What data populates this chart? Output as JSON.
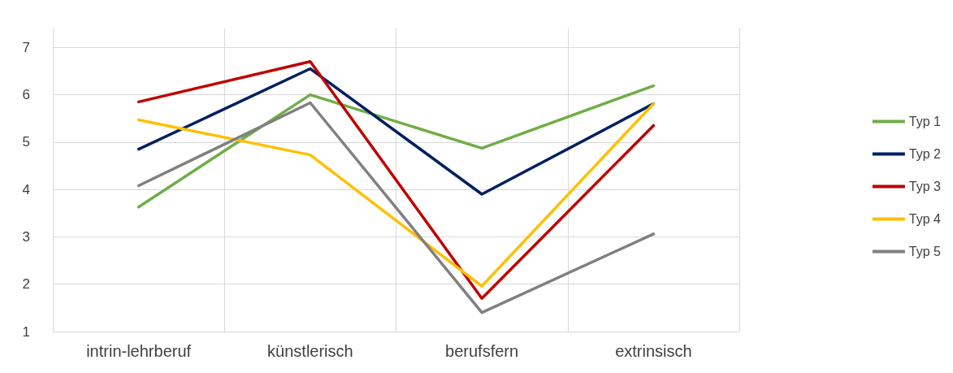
{
  "chart_data": {
    "type": "line",
    "categories": [
      "intrin-lehrberuf",
      "künstlerisch",
      "berufsfern",
      "extrinsisch"
    ],
    "series": [
      {
        "name": "Typ 1",
        "color": "#70ad47",
        "values": [
          3.63,
          6.0,
          4.87,
          6.19
        ]
      },
      {
        "name": "Typ 2",
        "color": "#002060",
        "values": [
          4.85,
          6.55,
          3.9,
          5.81
        ]
      },
      {
        "name": "Typ 3",
        "color": "#c00000",
        "values": [
          5.85,
          6.7,
          1.7,
          5.35
        ]
      },
      {
        "name": "Typ 4",
        "color": "#ffc000",
        "values": [
          5.47,
          4.73,
          1.96,
          5.81
        ]
      },
      {
        "name": "Typ 5",
        "color": "#808080",
        "values": [
          4.08,
          5.83,
          1.4,
          3.06
        ]
      }
    ],
    "ylim": [
      1,
      7.4
    ],
    "yticks": [
      1,
      2,
      3,
      4,
      5,
      6,
      7
    ],
    "grid": true,
    "legend": "right",
    "marker": "none",
    "line_style": "solid"
  }
}
